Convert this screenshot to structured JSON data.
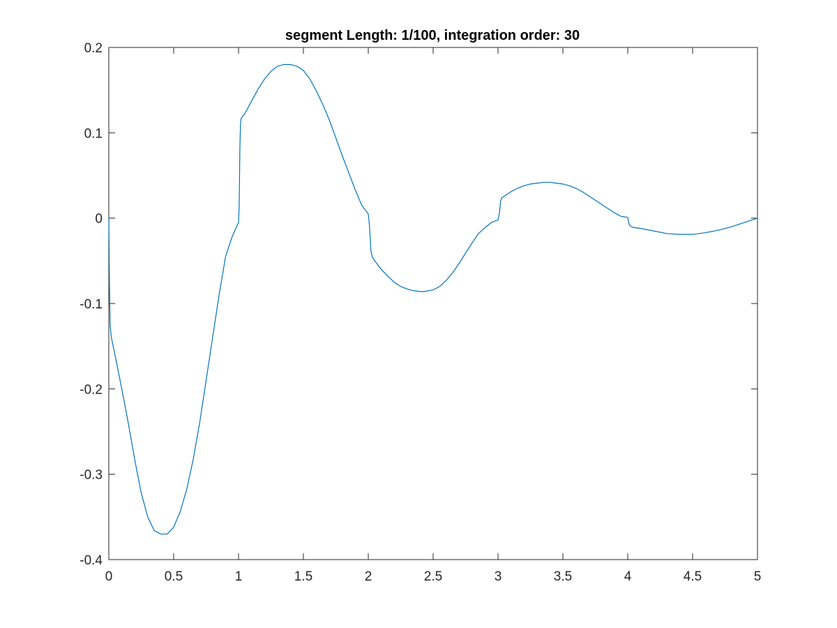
{
  "chart_data": {
    "type": "line",
    "title": "segment Length: 1/100, integration order: 30",
    "xlabel": "",
    "ylabel": "",
    "xlim": [
      0,
      5
    ],
    "ylim": [
      -0.4,
      0.2
    ],
    "x_ticks": [
      "0",
      "0.5",
      "1",
      "1.5",
      "2",
      "2.5",
      "3",
      "3.5",
      "4",
      "4.5",
      "5"
    ],
    "y_ticks": [
      "-0.4",
      "-0.3",
      "-0.2",
      "-0.1",
      "0",
      "0.1",
      "0.2"
    ],
    "grid": false,
    "legend": "none",
    "series": [
      {
        "color": "#0072BD",
        "x": [
          0,
          0.005,
          0.01,
          0.02,
          0.05,
          0.1,
          0.15,
          0.2,
          0.25,
          0.3,
          0.35,
          0.4,
          0.45,
          0.5,
          0.55,
          0.6,
          0.65,
          0.7,
          0.75,
          0.8,
          0.85,
          0.9,
          0.95,
          1.0,
          1.005,
          1.01,
          1.015,
          1.02,
          1.05,
          1.1,
          1.15,
          1.2,
          1.25,
          1.3,
          1.35,
          1.4,
          1.45,
          1.5,
          1.55,
          1.6,
          1.65,
          1.7,
          1.75,
          1.8,
          1.85,
          1.9,
          1.95,
          2.0,
          2.01,
          2.02,
          2.03,
          2.05,
          2.1,
          2.15,
          2.2,
          2.25,
          2.3,
          2.35,
          2.4,
          2.43,
          2.5,
          2.55,
          2.6,
          2.65,
          2.7,
          2.75,
          2.8,
          2.85,
          2.9,
          2.95,
          3.0,
          3.01,
          3.02,
          3.03,
          3.05,
          3.1,
          3.15,
          3.2,
          3.25,
          3.3,
          3.35,
          3.4,
          3.45,
          3.5,
          3.55,
          3.6,
          3.65,
          3.7,
          3.75,
          3.8,
          3.85,
          3.9,
          3.95,
          4.0,
          4.01,
          4.02,
          4.03,
          4.05,
          4.1,
          4.2,
          4.3,
          4.4,
          4.5,
          4.6,
          4.7,
          4.8,
          4.9,
          5.0
        ],
        "y": [
          0,
          -0.08,
          -0.125,
          -0.14,
          -0.162,
          -0.2,
          -0.24,
          -0.283,
          -0.322,
          -0.35,
          -0.366,
          -0.37,
          -0.37,
          -0.362,
          -0.344,
          -0.318,
          -0.283,
          -0.24,
          -0.19,
          -0.14,
          -0.09,
          -0.045,
          -0.022,
          -0.005,
          0.015,
          0.08,
          0.11,
          0.117,
          0.123,
          0.137,
          0.151,
          0.163,
          0.172,
          0.178,
          0.18,
          0.18,
          0.178,
          0.173,
          0.163,
          0.149,
          0.133,
          0.115,
          0.094,
          0.073,
          0.053,
          0.033,
          0.015,
          0.005,
          -0.01,
          -0.038,
          -0.045,
          -0.05,
          -0.06,
          -0.068,
          -0.075,
          -0.08,
          -0.083,
          -0.085,
          -0.086,
          -0.086,
          -0.084,
          -0.08,
          -0.073,
          -0.064,
          -0.053,
          -0.041,
          -0.029,
          -0.018,
          -0.011,
          -0.005,
          -0.002,
          0.005,
          0.02,
          0.024,
          0.026,
          0.031,
          0.035,
          0.038,
          0.04,
          0.041,
          0.042,
          0.042,
          0.041,
          0.04,
          0.038,
          0.035,
          0.031,
          0.026,
          0.021,
          0.016,
          0.011,
          0.006,
          0.002,
          0.001,
          -0.007,
          -0.009,
          -0.01,
          -0.011,
          -0.012,
          -0.015,
          -0.018,
          -0.019,
          -0.019,
          -0.017,
          -0.014,
          -0.01,
          -0.005,
          0
        ]
      }
    ]
  }
}
